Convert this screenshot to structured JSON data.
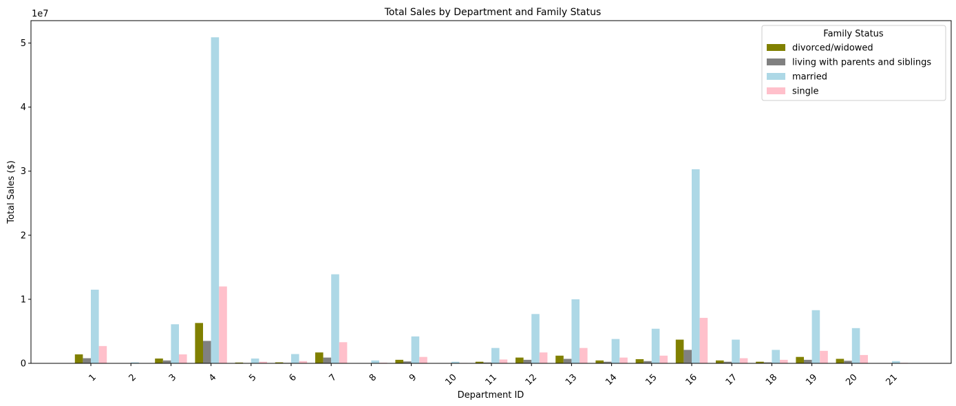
{
  "chart_data": {
    "type": "bar",
    "title": "Total Sales by Department and Family Status",
    "xlabel": "Department ID",
    "ylabel": "Total Sales ($)",
    "y_multiplier_label": "1e7",
    "y_multiplier": 10000000,
    "ylim": [
      0,
      53500000
    ],
    "yticks": [
      0,
      10000000,
      20000000,
      30000000,
      40000000,
      50000000
    ],
    "ytick_labels": [
      "0",
      "1",
      "2",
      "3",
      "4",
      "5"
    ],
    "grid": false,
    "legend": {
      "title": "Family Status",
      "placement": "top-right"
    },
    "categories": [
      "1",
      "2",
      "3",
      "4",
      "5",
      "6",
      "7",
      "8",
      "9",
      "10",
      "11",
      "12",
      "13",
      "14",
      "15",
      "16",
      "17",
      "18",
      "19",
      "20",
      "21"
    ],
    "series": [
      {
        "name": "divorced/widowed",
        "color": "#808000",
        "values": [
          1400000,
          20000,
          750000,
          6300000,
          120000,
          150000,
          1700000,
          50000,
          550000,
          30000,
          250000,
          900000,
          1200000,
          450000,
          650000,
          3700000,
          450000,
          250000,
          1000000,
          700000,
          40000
        ]
      },
      {
        "name": "living with parents and siblings",
        "color": "#808080",
        "values": [
          800000,
          10000,
          450000,
          3500000,
          60000,
          80000,
          900000,
          30000,
          300000,
          20000,
          130000,
          550000,
          700000,
          250000,
          350000,
          2100000,
          250000,
          150000,
          550000,
          400000,
          20000
        ]
      },
      {
        "name": "married",
        "color": "#add8e6",
        "values": [
          11500000,
          150000,
          6100000,
          50900000,
          750000,
          1450000,
          13900000,
          450000,
          4200000,
          250000,
          2400000,
          7700000,
          10000000,
          3800000,
          5400000,
          30300000,
          3700000,
          2100000,
          8300000,
          5500000,
          350000
        ]
      },
      {
        "name": "single",
        "color": "#ffc0cb",
        "values": [
          2700000,
          40000,
          1400000,
          12000000,
          250000,
          350000,
          3300000,
          100000,
          1000000,
          60000,
          600000,
          1700000,
          2400000,
          900000,
          1200000,
          7100000,
          800000,
          550000,
          1950000,
          1300000,
          80000
        ]
      }
    ]
  }
}
